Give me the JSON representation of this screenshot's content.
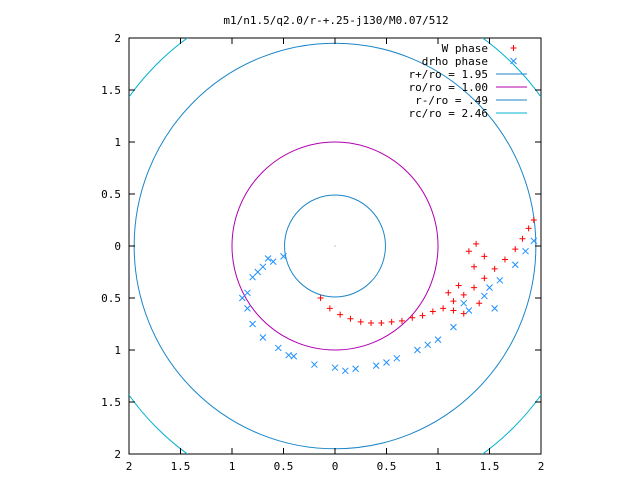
{
  "chart_data": {
    "type": "scatter",
    "title": "m1/n1.5/q2.0/r-+.25-j130/M0.07/512",
    "xlabel": "",
    "ylabel": "",
    "xlim": [
      -2,
      2
    ],
    "ylim": [
      -2,
      2
    ],
    "grid": false,
    "legend_position": "top-right",
    "x_tick_labels": [
      "2",
      "1.5",
      "1",
      "0.5",
      "0",
      "0.5",
      "1",
      "1.5",
      "2"
    ],
    "x_tick_values": [
      -2,
      -1.5,
      -1,
      -0.5,
      0,
      0.5,
      1,
      1.5,
      2
    ],
    "y_tick_labels": [
      "2",
      "1.5",
      "1",
      "0.5",
      "0",
      "0.5",
      "1",
      "1.5",
      "2"
    ],
    "y_tick_values": [
      2,
      1.5,
      1,
      0.5,
      0,
      -0.5,
      -1,
      -1.5,
      -2
    ],
    "point_series": [
      {
        "name": "W phase",
        "marker": "plus",
        "color": "#ff0000",
        "points": [
          [
            -0.14,
            -0.5
          ],
          [
            -0.05,
            -0.6
          ],
          [
            0.05,
            -0.66
          ],
          [
            0.15,
            -0.7
          ],
          [
            0.25,
            -0.73
          ],
          [
            0.35,
            -0.74
          ],
          [
            0.45,
            -0.74
          ],
          [
            0.55,
            -0.73
          ],
          [
            0.65,
            -0.72
          ],
          [
            0.75,
            -0.69
          ],
          [
            0.85,
            -0.67
          ],
          [
            0.95,
            -0.63
          ],
          [
            1.05,
            -0.6
          ],
          [
            1.15,
            -0.53
          ],
          [
            1.25,
            -0.47
          ],
          [
            1.35,
            -0.4
          ],
          [
            1.45,
            -0.31
          ],
          [
            1.55,
            -0.22
          ],
          [
            1.65,
            -0.13
          ],
          [
            1.75,
            -0.03
          ],
          [
            1.82,
            0.07
          ],
          [
            1.88,
            0.17
          ],
          [
            1.93,
            0.25
          ],
          [
            1.3,
            -0.05
          ],
          [
            1.35,
            -0.2
          ],
          [
            1.45,
            -0.1
          ],
          [
            1.37,
            0.02
          ],
          [
            1.1,
            -0.45
          ],
          [
            1.2,
            -0.38
          ],
          [
            1.25,
            -0.65
          ],
          [
            1.4,
            -0.55
          ],
          [
            1.15,
            -0.62
          ]
        ]
      },
      {
        "name": "drho phase",
        "marker": "cross",
        "color": "#1e90ff",
        "points": [
          [
            -0.5,
            -0.1
          ],
          [
            -0.6,
            -0.15
          ],
          [
            -0.7,
            -0.2
          ],
          [
            -0.8,
            -0.3
          ],
          [
            -0.85,
            -0.45
          ],
          [
            -0.85,
            -0.6
          ],
          [
            -0.8,
            -0.75
          ],
          [
            -0.7,
            -0.88
          ],
          [
            -0.55,
            -0.98
          ],
          [
            -0.4,
            -1.06
          ],
          [
            -0.2,
            -1.14
          ],
          [
            0.0,
            -1.17
          ],
          [
            0.2,
            -1.18
          ],
          [
            0.4,
            -1.15
          ],
          [
            0.6,
            -1.08
          ],
          [
            0.8,
            -1.0
          ],
          [
            1.0,
            -0.9
          ],
          [
            1.15,
            -0.78
          ],
          [
            1.3,
            -0.62
          ],
          [
            1.45,
            -0.48
          ],
          [
            1.6,
            -0.33
          ],
          [
            1.75,
            -0.18
          ],
          [
            1.85,
            -0.05
          ],
          [
            1.93,
            0.05
          ],
          [
            -0.75,
            -0.25
          ],
          [
            -0.9,
            -0.5
          ],
          [
            -0.65,
            -0.12
          ],
          [
            -0.45,
            -1.05
          ],
          [
            0.1,
            -1.2
          ],
          [
            0.5,
            -1.12
          ],
          [
            0.9,
            -0.95
          ],
          [
            1.25,
            -0.55
          ],
          [
            1.5,
            -0.4
          ],
          [
            1.55,
            -0.6
          ]
        ]
      }
    ],
    "circle_series": [
      {
        "name": "r+/ro = 1.95",
        "radius": 1.95,
        "color": "#1c86c8"
      },
      {
        "name": "ro/ro = 1.00",
        "radius": 1.0,
        "color": "#b000b0"
      },
      {
        "name": "r-/ro = .49",
        "radius": 0.49,
        "color": "#1c86c8"
      },
      {
        "name": "rc/ro = 2.46",
        "radius": 2.46,
        "color": "#00b0d0"
      }
    ],
    "legend": [
      {
        "label": "W phase",
        "kind": "plus",
        "color": "#ff0000"
      },
      {
        "label": "drho phase",
        "kind": "cross",
        "color": "#1e90ff"
      },
      {
        "label": "r+/ro = 1.95",
        "kind": "line",
        "color": "#1c86c8"
      },
      {
        "label": "ro/ro = 1.00",
        "kind": "line",
        "color": "#b000b0"
      },
      {
        "label": "r-/ro = .49",
        "kind": "line",
        "color": "#1c86c8"
      },
      {
        "label": "rc/ro = 2.46",
        "kind": "line",
        "color": "#00b0d0"
      }
    ]
  }
}
